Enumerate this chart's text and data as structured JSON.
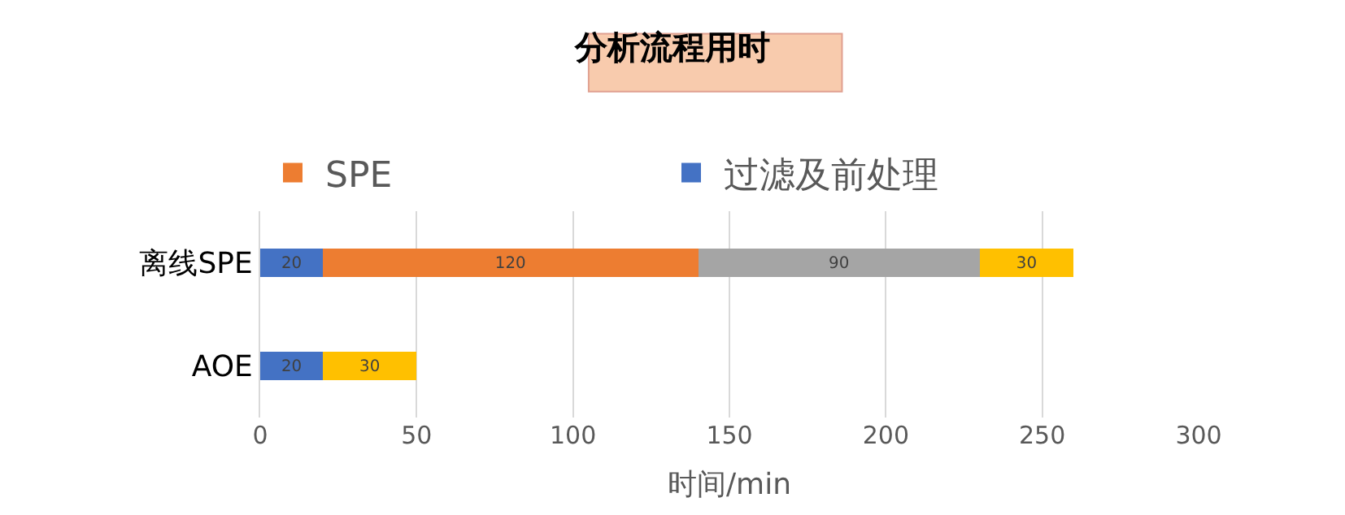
{
  "chart_data": {
    "type": "bar",
    "orientation": "horizontal",
    "stacked": true,
    "title": "分析流程用时",
    "xlabel": "时间/min",
    "categories": [
      "离线SPE",
      "AOE"
    ],
    "series": [
      {
        "name": "过滤及前处理",
        "color": "#4472c4",
        "values": [
          20,
          20
        ]
      },
      {
        "name": "SPE",
        "color": "#ed7d31",
        "values": [
          120,
          null
        ]
      },
      {
        "color": "#a5a5a5",
        "values": [
          90,
          null
        ]
      },
      {
        "color": "#ffc000",
        "values": [
          30,
          30
        ]
      }
    ],
    "xlim": [
      0,
      300
    ],
    "xticks": [
      0,
      50,
      100,
      150,
      200,
      250,
      300
    ],
    "grid": "x",
    "legend": "top left",
    "data_labels": true
  }
}
